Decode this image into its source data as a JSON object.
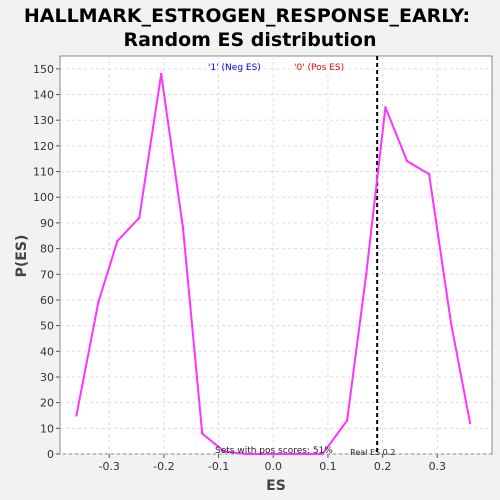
{
  "chart_data": {
    "type": "line",
    "title_line1": "HALLMARK_ESTROGEN_RESPONSE_EARLY:",
    "title_line2": "Random ES distribution",
    "xlabel": "ES",
    "ylabel": "P(ES)",
    "xlim": [
      -0.39,
      0.4
    ],
    "ylim": [
      0,
      155
    ],
    "x_ticks": [
      -0.3,
      -0.2,
      -0.1,
      0.0,
      0.1,
      0.2,
      0.3
    ],
    "x_tick_labels": [
      "-0.3",
      "-0.2",
      "-0.1",
      "0.0",
      "0.1",
      "0.2",
      "0.3"
    ],
    "y_ticks": [
      0,
      10,
      20,
      30,
      40,
      50,
      60,
      70,
      80,
      90,
      100,
      110,
      120,
      130,
      140,
      150
    ],
    "y_tick_labels": [
      "0",
      "10",
      "20",
      "30",
      "40",
      "50",
      "60",
      "70",
      "80",
      "90",
      "100",
      "110",
      "120",
      "130",
      "140",
      "150"
    ],
    "grid": true,
    "series_color": "#ff33ff",
    "x": [
      -0.36,
      -0.32,
      -0.285,
      -0.245,
      -0.205,
      -0.165,
      -0.13,
      -0.09,
      -0.05,
      0.0,
      0.05,
      0.09,
      0.135,
      0.17,
      0.205,
      0.245,
      0.285,
      0.325,
      0.36
    ],
    "y": [
      15,
      59,
      83,
      92,
      148,
      88,
      8,
      1,
      0,
      0,
      0,
      0,
      13,
      70,
      135,
      114,
      109,
      51,
      12
    ],
    "real_es": 0.19,
    "real_es_label": "Real ES 0.2",
    "legend_neg": "'1' (Neg ES)",
    "legend_pos": "'0' (Pos ES)",
    "pos_scores_note": "Sets with pos scores: 51%"
  }
}
